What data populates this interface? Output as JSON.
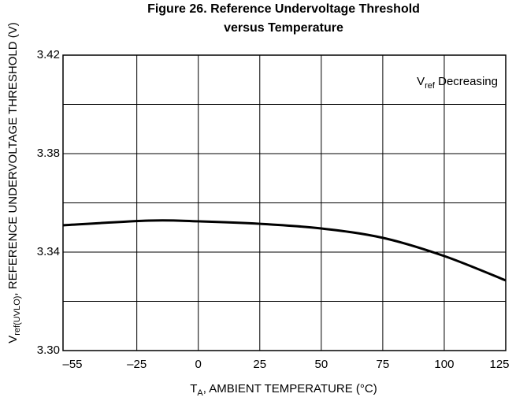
{
  "chart_data": {
    "type": "line",
    "title": [
      "Figure 26. Reference Undervoltage Threshold",
      "versus Temperature"
    ],
    "y_label": {
      "main": "V",
      "sub": "ref(UVLO)",
      "rest": ", REFERENCE UNDERVOLTAGE THRESHOLD (V)"
    },
    "x_label": {
      "main": "T",
      "sub": "A",
      "rest": ", AMBIENT TEMPERATURE (°C)"
    },
    "annotation": {
      "main": "V",
      "sub": "ref",
      "rest": " Decreasing"
    },
    "x": [
      -55,
      -20,
      0,
      25,
      50,
      75,
      100,
      125
    ],
    "series": [
      {
        "color": "#000000",
        "values": [
          3.3509,
          3.3528,
          3.3525,
          3.3515,
          3.3496,
          3.3458,
          3.3384,
          3.3285
        ]
      }
    ],
    "xlim": [
      -55,
      125
    ],
    "xticks": [
      {
        "value": -55,
        "label": "–55"
      },
      {
        "value": -25,
        "label": "–25"
      },
      0,
      25,
      50,
      75,
      100,
      125
    ],
    "ylim": [
      3.3,
      3.42
    ],
    "yticks": [
      {
        "value": 3.3,
        "label": "3.30"
      },
      3.34,
      3.38,
      3.42
    ],
    "yminor_ticks": [
      3.32,
      3.36,
      3.4
    ],
    "grid": true
  }
}
